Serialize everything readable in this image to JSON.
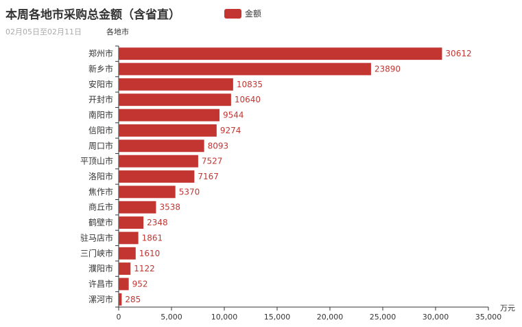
{
  "chart_data": {
    "type": "bar",
    "orientation": "horizontal",
    "title": "本周各地市采购总金额（含省直）",
    "subtitle": "02月05日至02月11日",
    "ylabel": "各地市",
    "xlabel": "万元",
    "legend": "金额",
    "legend_position": "top-center",
    "color": "#c23531",
    "xlim": [
      0,
      35000
    ],
    "xticks": [
      "0",
      "5,000",
      "10,000",
      "15,000",
      "20,000",
      "25,000",
      "30,000",
      "35,000"
    ],
    "grid": false,
    "categories": [
      "郑州市",
      "新乡市",
      "安阳市",
      "开封市",
      "南阳市",
      "信阳市",
      "周口市",
      "平顶山市",
      "洛阳市",
      "焦作市",
      "商丘市",
      "鹤壁市",
      "驻马店市",
      "三门峡市",
      "濮阳市",
      "许昌市",
      "漯河市"
    ],
    "series": [
      {
        "name": "金额",
        "values": [
          30612,
          23890,
          10835,
          10640,
          9544,
          9274,
          8093,
          7527,
          7167,
          5370,
          3538,
          2348,
          1861,
          1610,
          1122,
          952,
          285
        ]
      }
    ]
  }
}
